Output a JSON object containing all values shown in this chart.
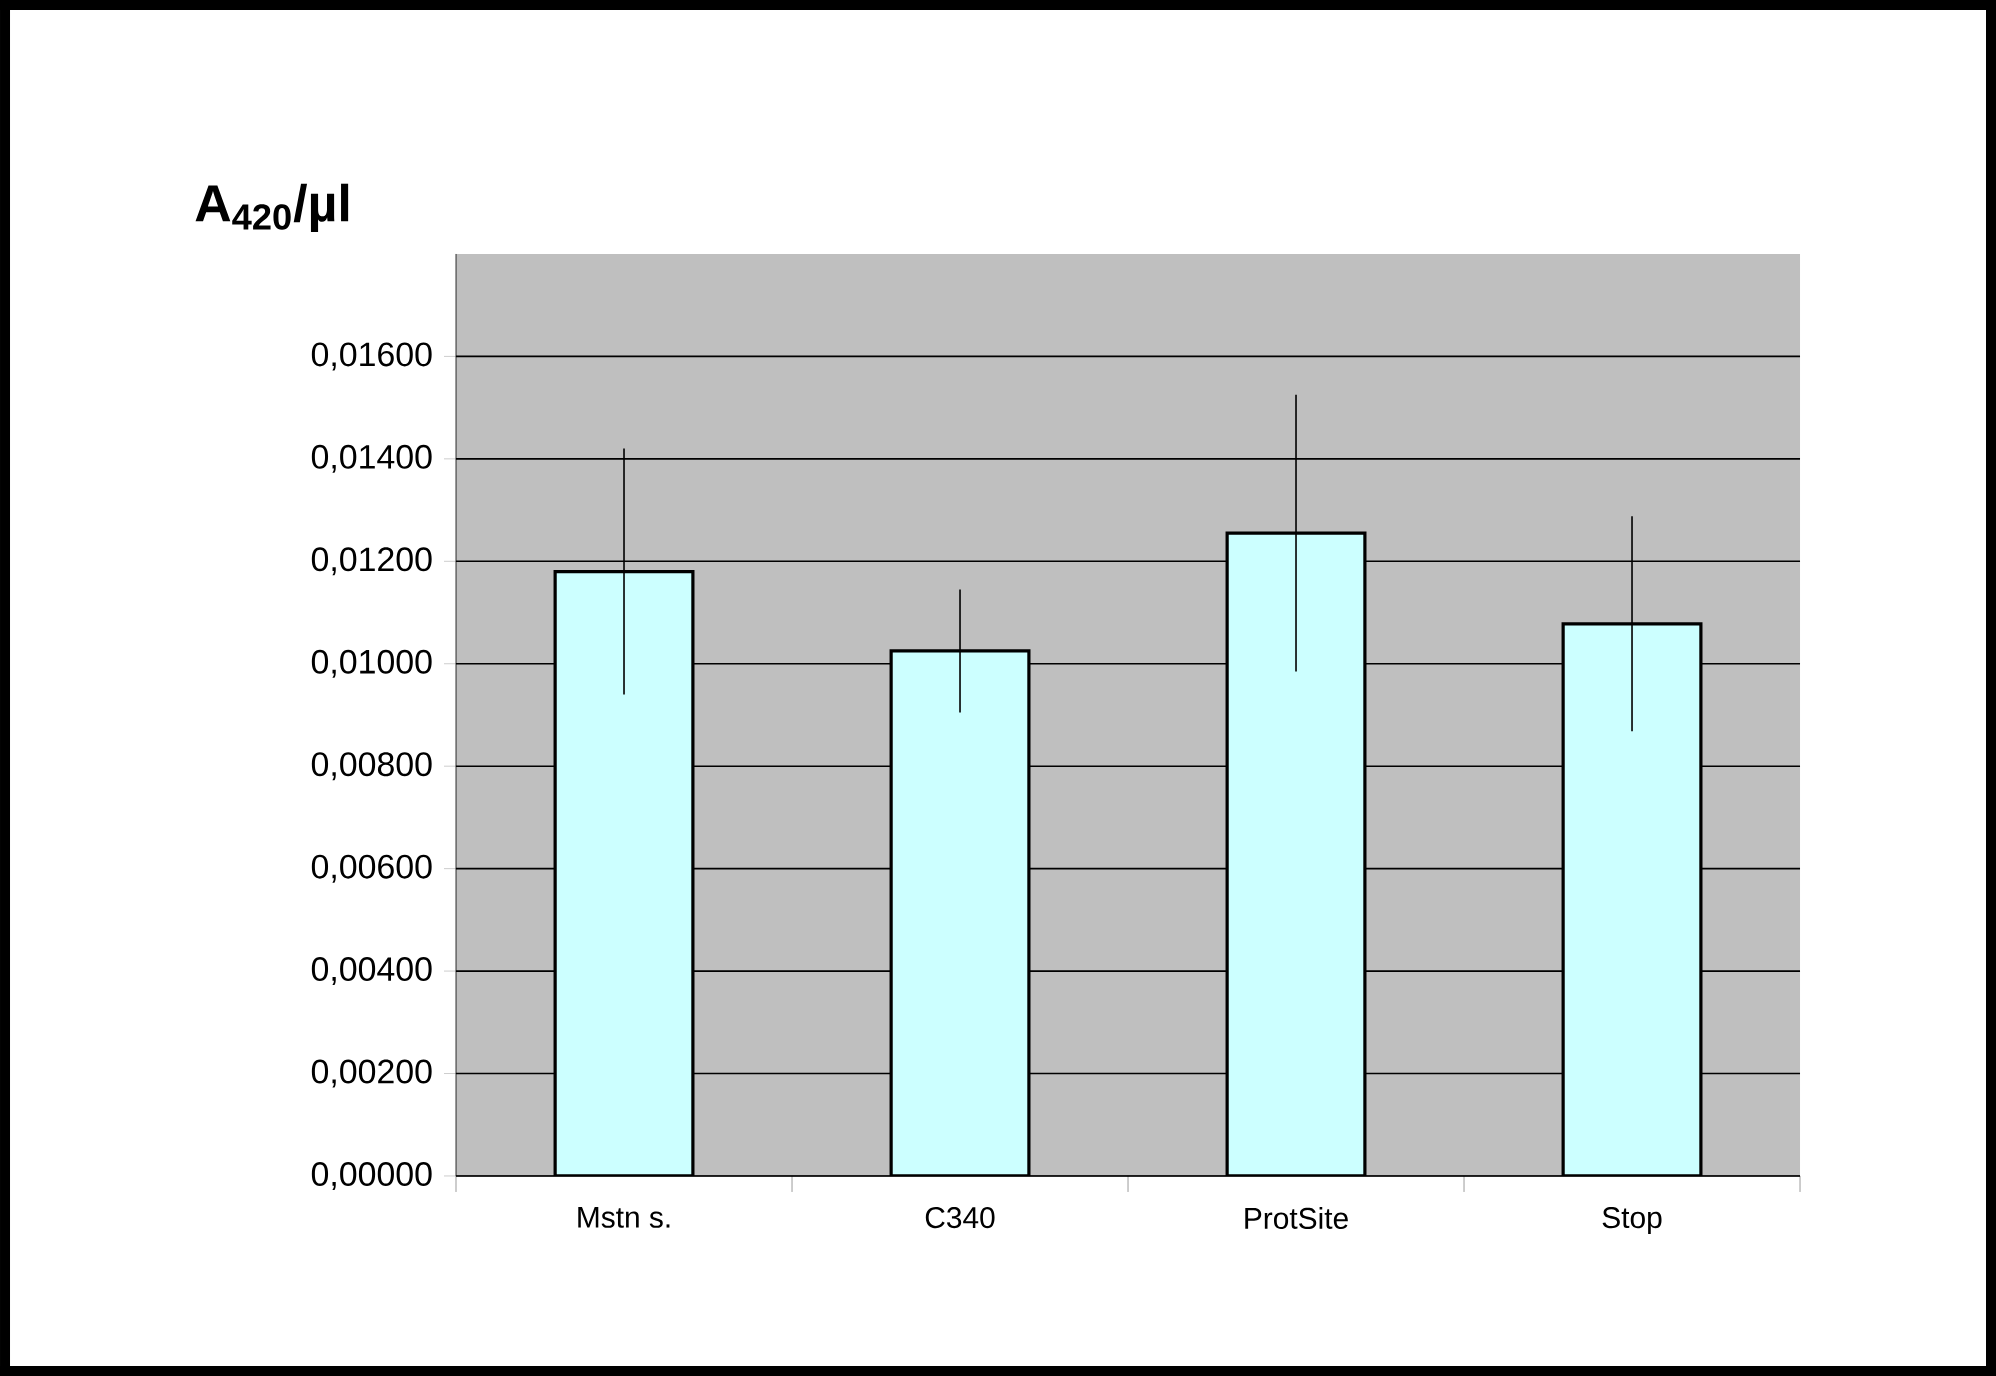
{
  "chart_data": {
    "type": "bar",
    "ylabel": "A$_{420}$/µl",
    "categories": [
      "Mstn s.",
      "C340",
      "ProtSite",
      "Stop"
    ],
    "values": [
      0.0118,
      0.01025,
      0.01255,
      0.01078
    ],
    "errors": [
      0.0024,
      0.0012,
      0.0027,
      0.0021
    ],
    "color": "#ccffff",
    "ylim": [
      0,
      0.018
    ],
    "yticks": [
      {
        "value": 0,
        "label": "0,00000"
      },
      {
        "value": 0.002,
        "label": "0,00200"
      },
      {
        "value": 0.004,
        "label": "0,00400"
      },
      {
        "value": 0.006,
        "label": "0,00600"
      },
      {
        "value": 0.008,
        "label": "0,00800"
      },
      {
        "value": 0.01,
        "label": "0,01000"
      },
      {
        "value": 0.012,
        "label": "0,01200"
      },
      {
        "value": 0.014,
        "label": "0,01400"
      },
      {
        "value": 0.016,
        "label": "0,01600"
      }
    ],
    "grid": "y"
  }
}
